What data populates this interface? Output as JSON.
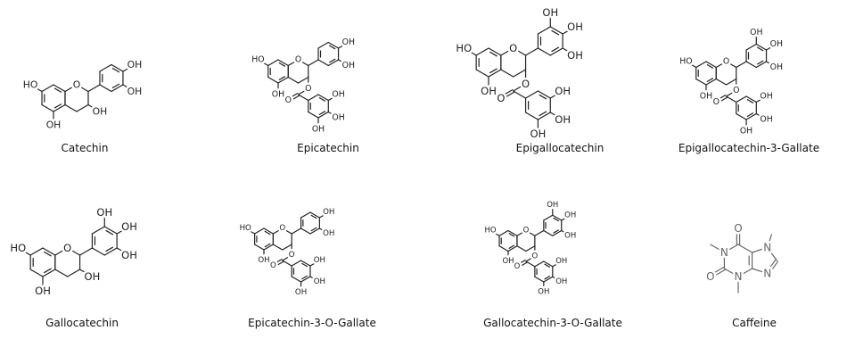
{
  "molecules": [
    {
      "name": "Catechin",
      "atoms": [
        "HO",
        "O",
        "OH",
        "OH",
        "OH",
        "OH"
      ]
    },
    {
      "name": "Epicatechin",
      "atoms": [
        "HO",
        "O",
        "OH",
        "OH",
        "OH",
        "O",
        "O",
        "OH",
        "OH",
        "OH"
      ]
    },
    {
      "name": "Epigallocatechin",
      "atoms": [
        "HO",
        "O",
        "OH",
        "OH",
        "OH",
        "OH",
        "O",
        "O",
        "OH",
        "OH",
        "OH"
      ]
    },
    {
      "name": "Epigallocatechin-3-Gallate",
      "atoms": [
        "HO",
        "O",
        "OH",
        "OH",
        "OH",
        "OH",
        "O",
        "O",
        "OH",
        "OH",
        "OH"
      ]
    },
    {
      "name": "Gallocatechin",
      "atoms": [
        "HO",
        "O",
        "OH",
        "OH",
        "OH",
        "OH",
        "OH"
      ]
    },
    {
      "name": "Epicatechin-3-O-Gallate",
      "atoms": [
        "HO",
        "O",
        "OH",
        "OH",
        "OH",
        "O",
        "O",
        "OH",
        "OH",
        "OH"
      ]
    },
    {
      "name": "Gallocatechin-3-O-Gallate",
      "atoms": [
        "HO",
        "O",
        "OH",
        "OH",
        "OH",
        "OH",
        "O",
        "O",
        "OH",
        "OH",
        "OH"
      ]
    },
    {
      "name": "Caffeine",
      "atoms": [
        "O",
        "N",
        "O",
        "N",
        "N",
        "N"
      ]
    }
  ]
}
